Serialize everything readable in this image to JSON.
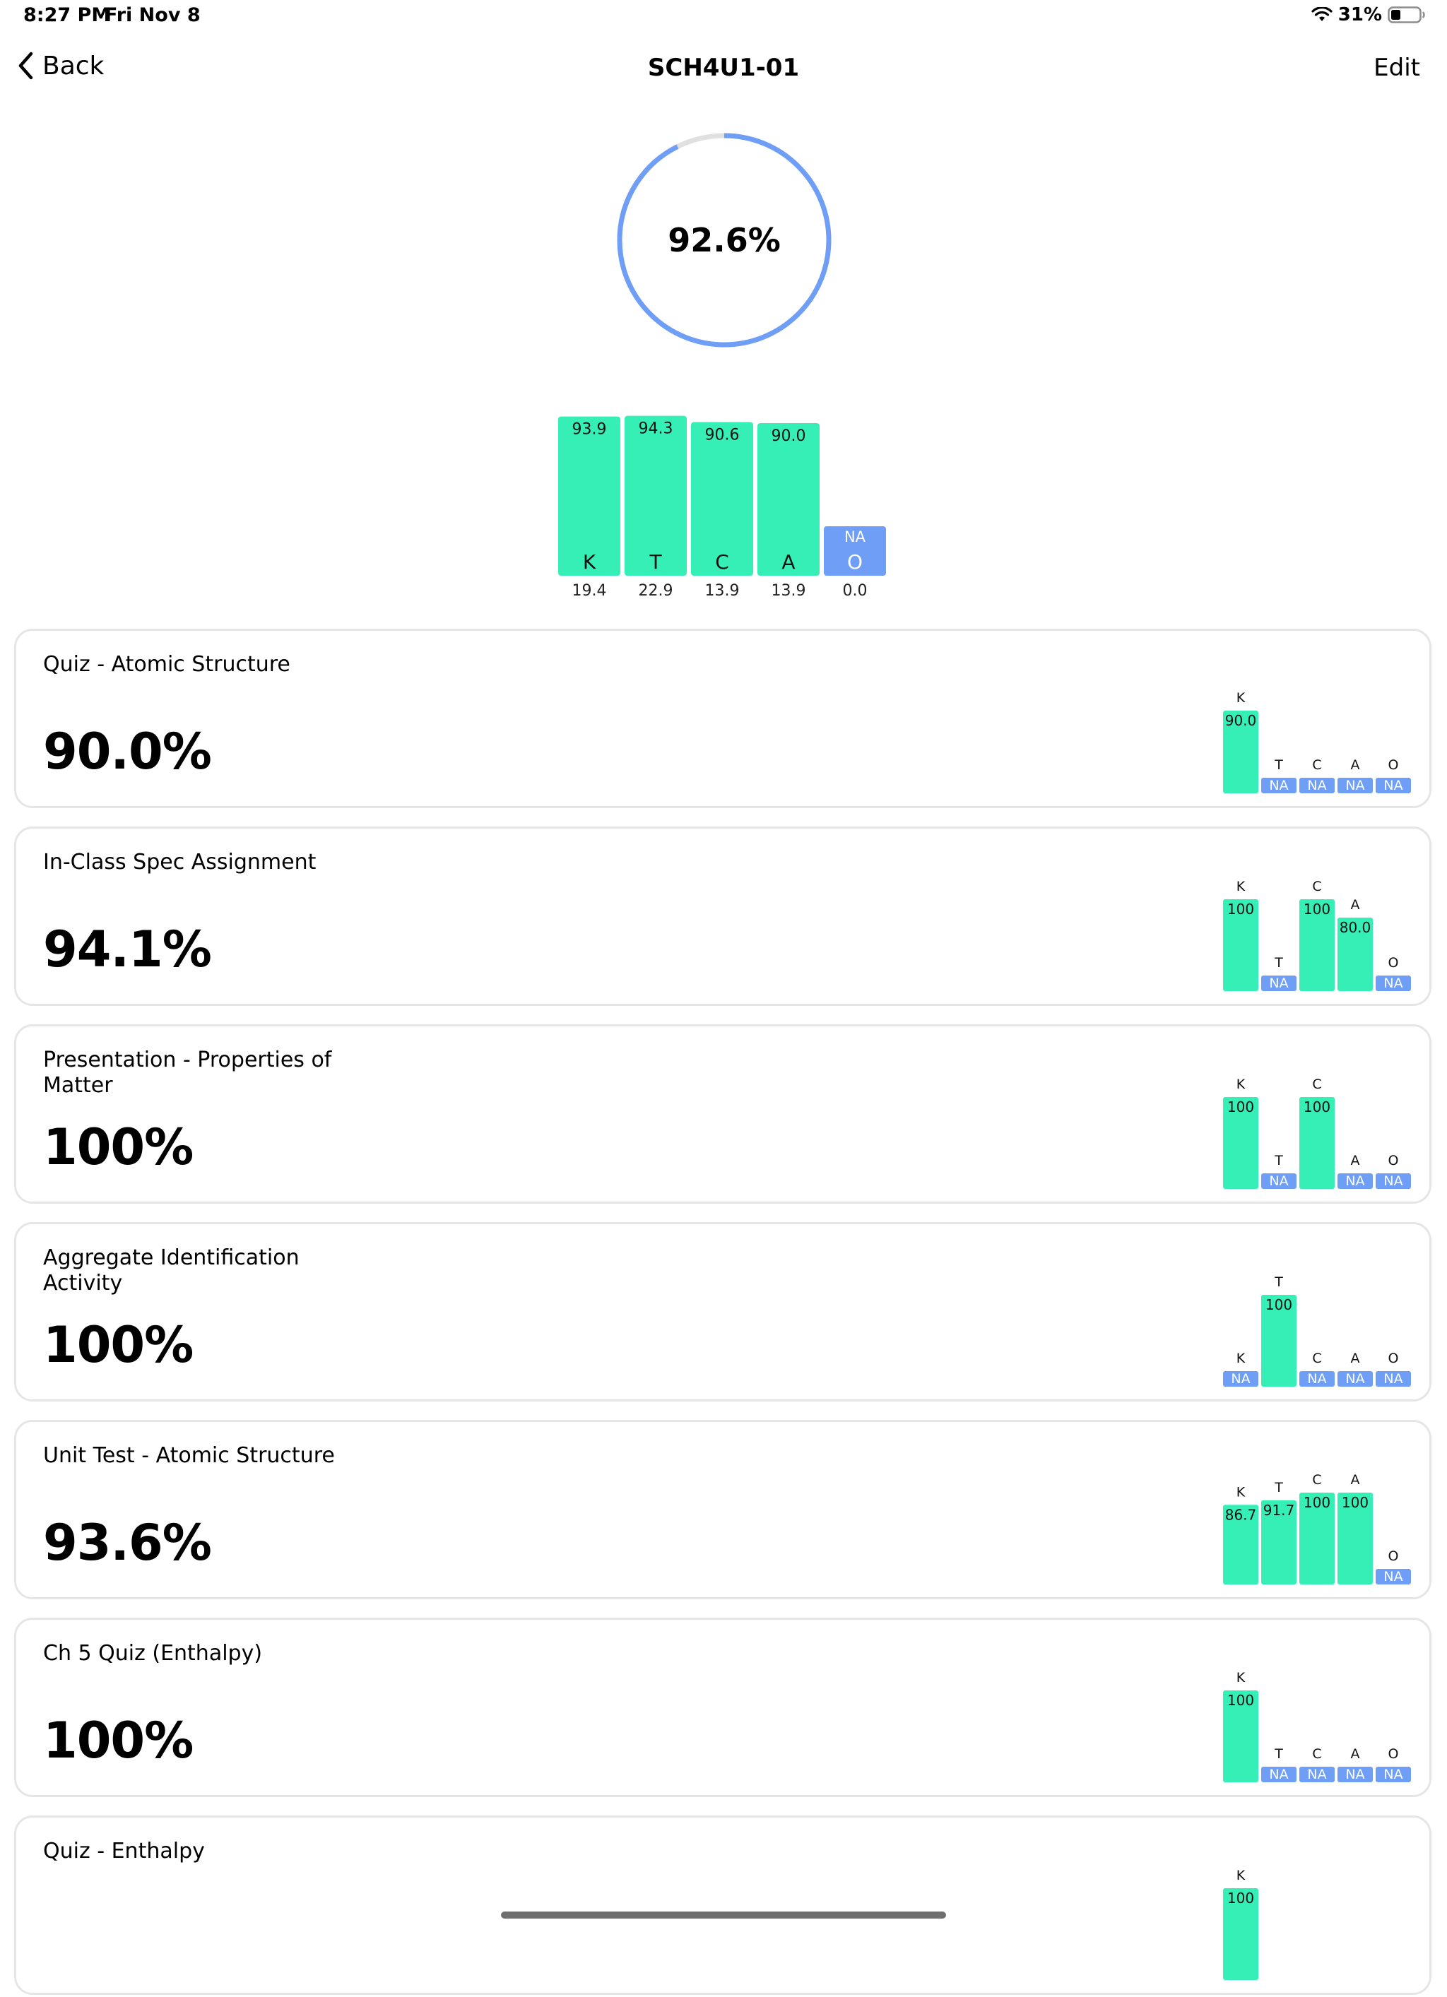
{
  "status_bar": {
    "time": "8:27 PM",
    "date": "Fri Nov 8",
    "battery": "31%"
  },
  "nav": {
    "back_label": "Back",
    "title": "SCH4U1-01",
    "edit_label": "Edit"
  },
  "overall": {
    "grade_label": "92.6%",
    "grade_value": 92.6
  },
  "colors": {
    "bar": "#36efb6",
    "na": "#6f9ef7",
    "ring": "#6f9ef7",
    "ring_track": "#e0e0e0",
    "card_border": "#e6e6e6"
  },
  "categories": [
    {
      "letter": "K",
      "score": "93.9",
      "score_value": 93.9,
      "weight": "19.4"
    },
    {
      "letter": "T",
      "score": "94.3",
      "score_value": 94.3,
      "weight": "22.9"
    },
    {
      "letter": "C",
      "score": "90.6",
      "score_value": 90.6,
      "weight": "13.9"
    },
    {
      "letter": "A",
      "score": "90.0",
      "score_value": 90.0,
      "weight": "13.9"
    },
    {
      "letter": "O",
      "score": "NA",
      "score_value": null,
      "weight": "0.0"
    }
  ],
  "assessments": [
    {
      "title": "Quiz - Atomic Structure",
      "score": "90.0%",
      "bars": [
        {
          "letter": "K",
          "label": "90.0",
          "value": 90.0
        },
        {
          "letter": "T",
          "label": "NA",
          "value": null
        },
        {
          "letter": "C",
          "label": "NA",
          "value": null
        },
        {
          "letter": "A",
          "label": "NA",
          "value": null
        },
        {
          "letter": "O",
          "label": "NA",
          "value": null
        }
      ]
    },
    {
      "title": "In-Class Spec Assignment",
      "score": "94.1%",
      "bars": [
        {
          "letter": "K",
          "label": "100",
          "value": 100
        },
        {
          "letter": "T",
          "label": "NA",
          "value": null
        },
        {
          "letter": "C",
          "label": "100",
          "value": 100
        },
        {
          "letter": "A",
          "label": "80.0",
          "value": 80.0
        },
        {
          "letter": "O",
          "label": "NA",
          "value": null
        }
      ]
    },
    {
      "title": "Presentation - Properties of Matter",
      "score": "100%",
      "bars": [
        {
          "letter": "K",
          "label": "100",
          "value": 100
        },
        {
          "letter": "T",
          "label": "NA",
          "value": null
        },
        {
          "letter": "C",
          "label": "100",
          "value": 100
        },
        {
          "letter": "A",
          "label": "NA",
          "value": null
        },
        {
          "letter": "O",
          "label": "NA",
          "value": null
        }
      ]
    },
    {
      "title": "Aggregate Identification Activity",
      "score": "100%",
      "bars": [
        {
          "letter": "K",
          "label": "NA",
          "value": null
        },
        {
          "letter": "T",
          "label": "100",
          "value": 100
        },
        {
          "letter": "C",
          "label": "NA",
          "value": null
        },
        {
          "letter": "A",
          "label": "NA",
          "value": null
        },
        {
          "letter": "O",
          "label": "NA",
          "value": null
        }
      ]
    },
    {
      "title": "Unit Test - Atomic Structure",
      "score": "93.6%",
      "bars": [
        {
          "letter": "K",
          "label": "86.7",
          "value": 86.7
        },
        {
          "letter": "T",
          "label": "91.7",
          "value": 91.7
        },
        {
          "letter": "C",
          "label": "100",
          "value": 100
        },
        {
          "letter": "A",
          "label": "100",
          "value": 100
        },
        {
          "letter": "O",
          "label": "NA",
          "value": null
        }
      ]
    },
    {
      "title": "Ch 5 Quiz (Enthalpy)",
      "score": "100%",
      "bars": [
        {
          "letter": "K",
          "label": "100",
          "value": 100
        },
        {
          "letter": "T",
          "label": "NA",
          "value": null
        },
        {
          "letter": "C",
          "label": "NA",
          "value": null
        },
        {
          "letter": "A",
          "label": "NA",
          "value": null
        },
        {
          "letter": "O",
          "label": "NA",
          "value": null
        }
      ]
    },
    {
      "title": "Quiz - Enthalpy",
      "score": "",
      "bars": [
        {
          "letter": "K",
          "label": "100",
          "value": 100
        }
      ]
    }
  ]
}
